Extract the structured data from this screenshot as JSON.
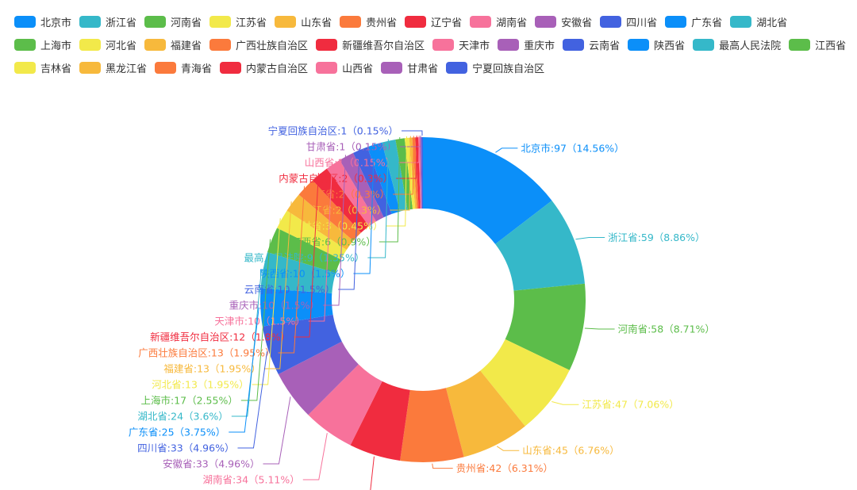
{
  "chart_data": {
    "type": "pie",
    "variant": "donut",
    "legend_position": "top",
    "label_format": "{name}:{value}（{percent}%）",
    "slices": [
      {
        "name": "北京市",
        "value": 97,
        "percent": "14.56",
        "color": "#0b8ff9"
      },
      {
        "name": "浙江省",
        "value": 59,
        "percent": "8.86",
        "color": "#35b8c9"
      },
      {
        "name": "河南省",
        "value": 58,
        "percent": "8.71",
        "color": "#5cbd4a"
      },
      {
        "name": "江苏省",
        "value": 47,
        "percent": "7.06",
        "color": "#f2e94a"
      },
      {
        "name": "山东省",
        "value": 45,
        "percent": "6.76",
        "color": "#f7b93c"
      },
      {
        "name": "贵州省",
        "value": 42,
        "percent": "6.31",
        "color": "#fb7a3c"
      },
      {
        "name": "辽宁省",
        "value": 34,
        "percent": "5.11",
        "color": "#f02c3f"
      },
      {
        "name": "湖南省",
        "value": 34,
        "percent": "5.11",
        "color": "#f7729b"
      },
      {
        "name": "安徽省",
        "value": 33,
        "percent": "4.96",
        "color": "#a860b8"
      },
      {
        "name": "四川省",
        "value": 33,
        "percent": "4.96",
        "color": "#4262e0"
      },
      {
        "name": "广东省",
        "value": 25,
        "percent": "3.75",
        "color": "#0b8ff9"
      },
      {
        "name": "湖北省",
        "value": 24,
        "percent": "3.6",
        "color": "#35b8c9"
      },
      {
        "name": "上海市",
        "value": 17,
        "percent": "2.55",
        "color": "#5cbd4a"
      },
      {
        "name": "河北省",
        "value": 13,
        "percent": "1.95",
        "color": "#f2e94a"
      },
      {
        "name": "福建省",
        "value": 13,
        "percent": "1.95",
        "color": "#f7b93c"
      },
      {
        "name": "广西壮族自治区",
        "value": 13,
        "percent": "1.95",
        "color": "#fb7a3c"
      },
      {
        "name": "新疆维吾尔自治区",
        "value": 12,
        "percent": "1.8",
        "color": "#f02c3f"
      },
      {
        "name": "天津市",
        "value": 10,
        "percent": "1.5",
        "color": "#f7729b"
      },
      {
        "name": "重庆市",
        "value": 10,
        "percent": "1.5",
        "color": "#a860b8"
      },
      {
        "name": "云南省",
        "value": 10,
        "percent": "1.5",
        "color": "#4262e0"
      },
      {
        "name": "陕西省",
        "value": 10,
        "percent": "1.5",
        "color": "#0b8ff9"
      },
      {
        "name": "最高人民法院",
        "value": 9,
        "percent": "1.35",
        "color": "#35b8c9"
      },
      {
        "name": "江西省",
        "value": 6,
        "percent": "0.9",
        "color": "#5cbd4a"
      },
      {
        "name": "吉林省",
        "value": 3,
        "percent": "0.45",
        "color": "#f2e94a"
      },
      {
        "name": "黑龙江省",
        "value": 2,
        "percent": "0.3",
        "color": "#f7b93c"
      },
      {
        "name": "青海省",
        "value": 2,
        "percent": "0.3",
        "color": "#fb7a3c"
      },
      {
        "name": "内蒙古自治区",
        "value": 2,
        "percent": "0.3",
        "color": "#f02c3f"
      },
      {
        "name": "山西省",
        "value": 1,
        "percent": "0.15",
        "color": "#f7729b"
      },
      {
        "name": "甘肃省",
        "value": 1,
        "percent": "0.15",
        "color": "#a860b8"
      },
      {
        "name": "宁夏回族自治区",
        "value": 1,
        "percent": "0.15",
        "color": "#4262e0"
      }
    ]
  }
}
